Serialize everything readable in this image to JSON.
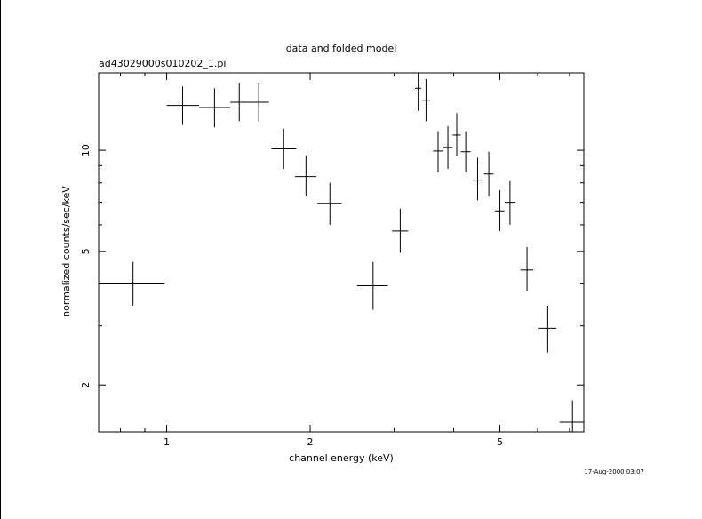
{
  "chart_data": {
    "type": "scatter",
    "title": "data and folded model",
    "subtitle": "ad43029000s010202_1.pi",
    "xlabel": "channel energy (keV)",
    "ylabel": "normalized counts/sec/keV",
    "xscale": "log",
    "yscale": "log",
    "xlim": [
      0.72,
      7.5
    ],
    "ylim": [
      1.45,
      17.0
    ],
    "x_ticks_major": [
      1,
      2,
      5
    ],
    "x_tick_labels": [
      "1",
      "2",
      "5"
    ],
    "y_ticks_major": [
      2,
      5,
      10
    ],
    "y_tick_labels": [
      "2",
      "5",
      "10"
    ],
    "grid": false,
    "legend": "none",
    "color": "#000000",
    "points": [
      {
        "x": 0.85,
        "xlo": 0.72,
        "xhi": 0.99,
        "y": 4.0,
        "ylo": 3.45,
        "yhi": 4.65
      },
      {
        "x": 1.08,
        "xlo": 1.0,
        "xhi": 1.17,
        "y": 13.6,
        "ylo": 11.9,
        "yhi": 15.5
      },
      {
        "x": 1.26,
        "xlo": 1.17,
        "xhi": 1.36,
        "y": 13.4,
        "ylo": 11.7,
        "yhi": 15.3
      },
      {
        "x": 1.42,
        "xlo": 1.36,
        "xhi": 1.48,
        "y": 13.9,
        "ylo": 12.2,
        "yhi": 15.9
      },
      {
        "x": 1.56,
        "xlo": 1.48,
        "xhi": 1.64,
        "y": 13.9,
        "ylo": 12.2,
        "yhi": 15.9
      },
      {
        "x": 1.76,
        "xlo": 1.66,
        "xhi": 1.87,
        "y": 10.1,
        "ylo": 8.8,
        "yhi": 11.6
      },
      {
        "x": 1.96,
        "xlo": 1.86,
        "xhi": 2.06,
        "y": 8.35,
        "ylo": 7.3,
        "yhi": 9.65
      },
      {
        "x": 2.2,
        "xlo": 2.07,
        "xhi": 2.33,
        "y": 6.95,
        "ylo": 6.0,
        "yhi": 8.0
      },
      {
        "x": 2.71,
        "xlo": 2.51,
        "xhi": 2.91,
        "y": 3.95,
        "ylo": 3.35,
        "yhi": 4.65
      },
      {
        "x": 3.09,
        "xlo": 2.97,
        "xhi": 3.21,
        "y": 5.75,
        "ylo": 4.95,
        "yhi": 6.7
      },
      {
        "x": 3.37,
        "xlo": 3.32,
        "xhi": 3.42,
        "y": 15.3,
        "ylo": 13.1,
        "yhi": 17.0
      },
      {
        "x": 3.5,
        "xlo": 3.43,
        "xhi": 3.57,
        "y": 14.1,
        "ylo": 12.2,
        "yhi": 16.3
      },
      {
        "x": 3.71,
        "xlo": 3.62,
        "xhi": 3.8,
        "y": 9.95,
        "ylo": 8.6,
        "yhi": 11.4
      },
      {
        "x": 3.89,
        "xlo": 3.8,
        "xhi": 3.98,
        "y": 10.2,
        "ylo": 8.8,
        "yhi": 11.8
      },
      {
        "x": 4.06,
        "xlo": 3.98,
        "xhi": 4.14,
        "y": 11.1,
        "ylo": 9.6,
        "yhi": 12.9
      },
      {
        "x": 4.24,
        "xlo": 4.14,
        "xhi": 4.34,
        "y": 9.9,
        "ylo": 8.6,
        "yhi": 11.4
      },
      {
        "x": 4.49,
        "xlo": 4.38,
        "xhi": 4.6,
        "y": 8.15,
        "ylo": 7.1,
        "yhi": 9.5
      },
      {
        "x": 4.74,
        "xlo": 4.63,
        "xhi": 4.85,
        "y": 8.5,
        "ylo": 7.3,
        "yhi": 9.9
      },
      {
        "x": 5.0,
        "xlo": 4.88,
        "xhi": 5.11,
        "y": 6.6,
        "ylo": 5.75,
        "yhi": 7.6
      },
      {
        "x": 5.25,
        "xlo": 5.12,
        "xhi": 5.38,
        "y": 7.0,
        "ylo": 6.0,
        "yhi": 8.1
      },
      {
        "x": 5.7,
        "xlo": 5.52,
        "xhi": 5.88,
        "y": 4.4,
        "ylo": 3.8,
        "yhi": 5.15
      },
      {
        "x": 6.3,
        "xlo": 6.03,
        "xhi": 6.57,
        "y": 2.95,
        "ylo": 2.5,
        "yhi": 3.45
      },
      {
        "x": 7.1,
        "xlo": 6.67,
        "xhi": 7.5,
        "y": 1.55,
        "ylo": 1.45,
        "yhi": 1.8
      }
    ]
  },
  "footer": {
    "timestamp": "17-Aug-2000 03:07"
  }
}
